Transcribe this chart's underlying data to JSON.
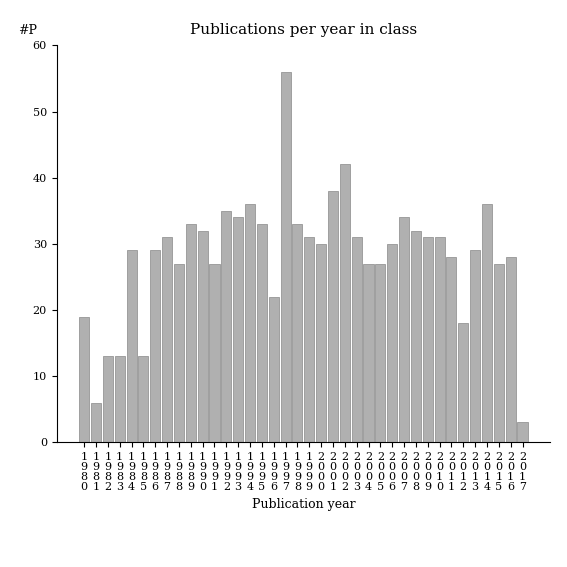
{
  "title": "Publications per year in class",
  "xlabel": "Publication year",
  "ylabel": "#P",
  "years": [
    1980,
    1981,
    1982,
    1983,
    1984,
    1985,
    1986,
    1987,
    1988,
    1989,
    1990,
    1991,
    1992,
    1993,
    1994,
    1995,
    1996,
    1997,
    1998,
    1999,
    2000,
    2001,
    2002,
    2003,
    2004,
    2005,
    2006,
    2007,
    2008,
    2009,
    2010,
    2011,
    2012,
    2013,
    2014,
    2015,
    2016,
    2017
  ],
  "values": [
    19,
    6,
    13,
    13,
    29,
    13,
    29,
    31,
    27,
    33,
    32,
    27,
    35,
    34,
    36,
    33,
    22,
    56,
    33,
    31,
    30,
    38,
    42,
    31,
    27,
    27,
    30,
    34,
    32,
    31,
    31,
    28,
    18,
    29,
    36,
    27,
    28,
    3
  ],
  "bar_color": "#b0b0b0",
  "bar_edgecolor": "#888888",
  "ylim": [
    0,
    60
  ],
  "yticks": [
    0,
    10,
    20,
    30,
    40,
    50,
    60
  ],
  "title_fontsize": 11,
  "label_fontsize": 9,
  "tick_fontsize": 8,
  "ylabel_fontsize": 9,
  "background_color": "#ffffff"
}
